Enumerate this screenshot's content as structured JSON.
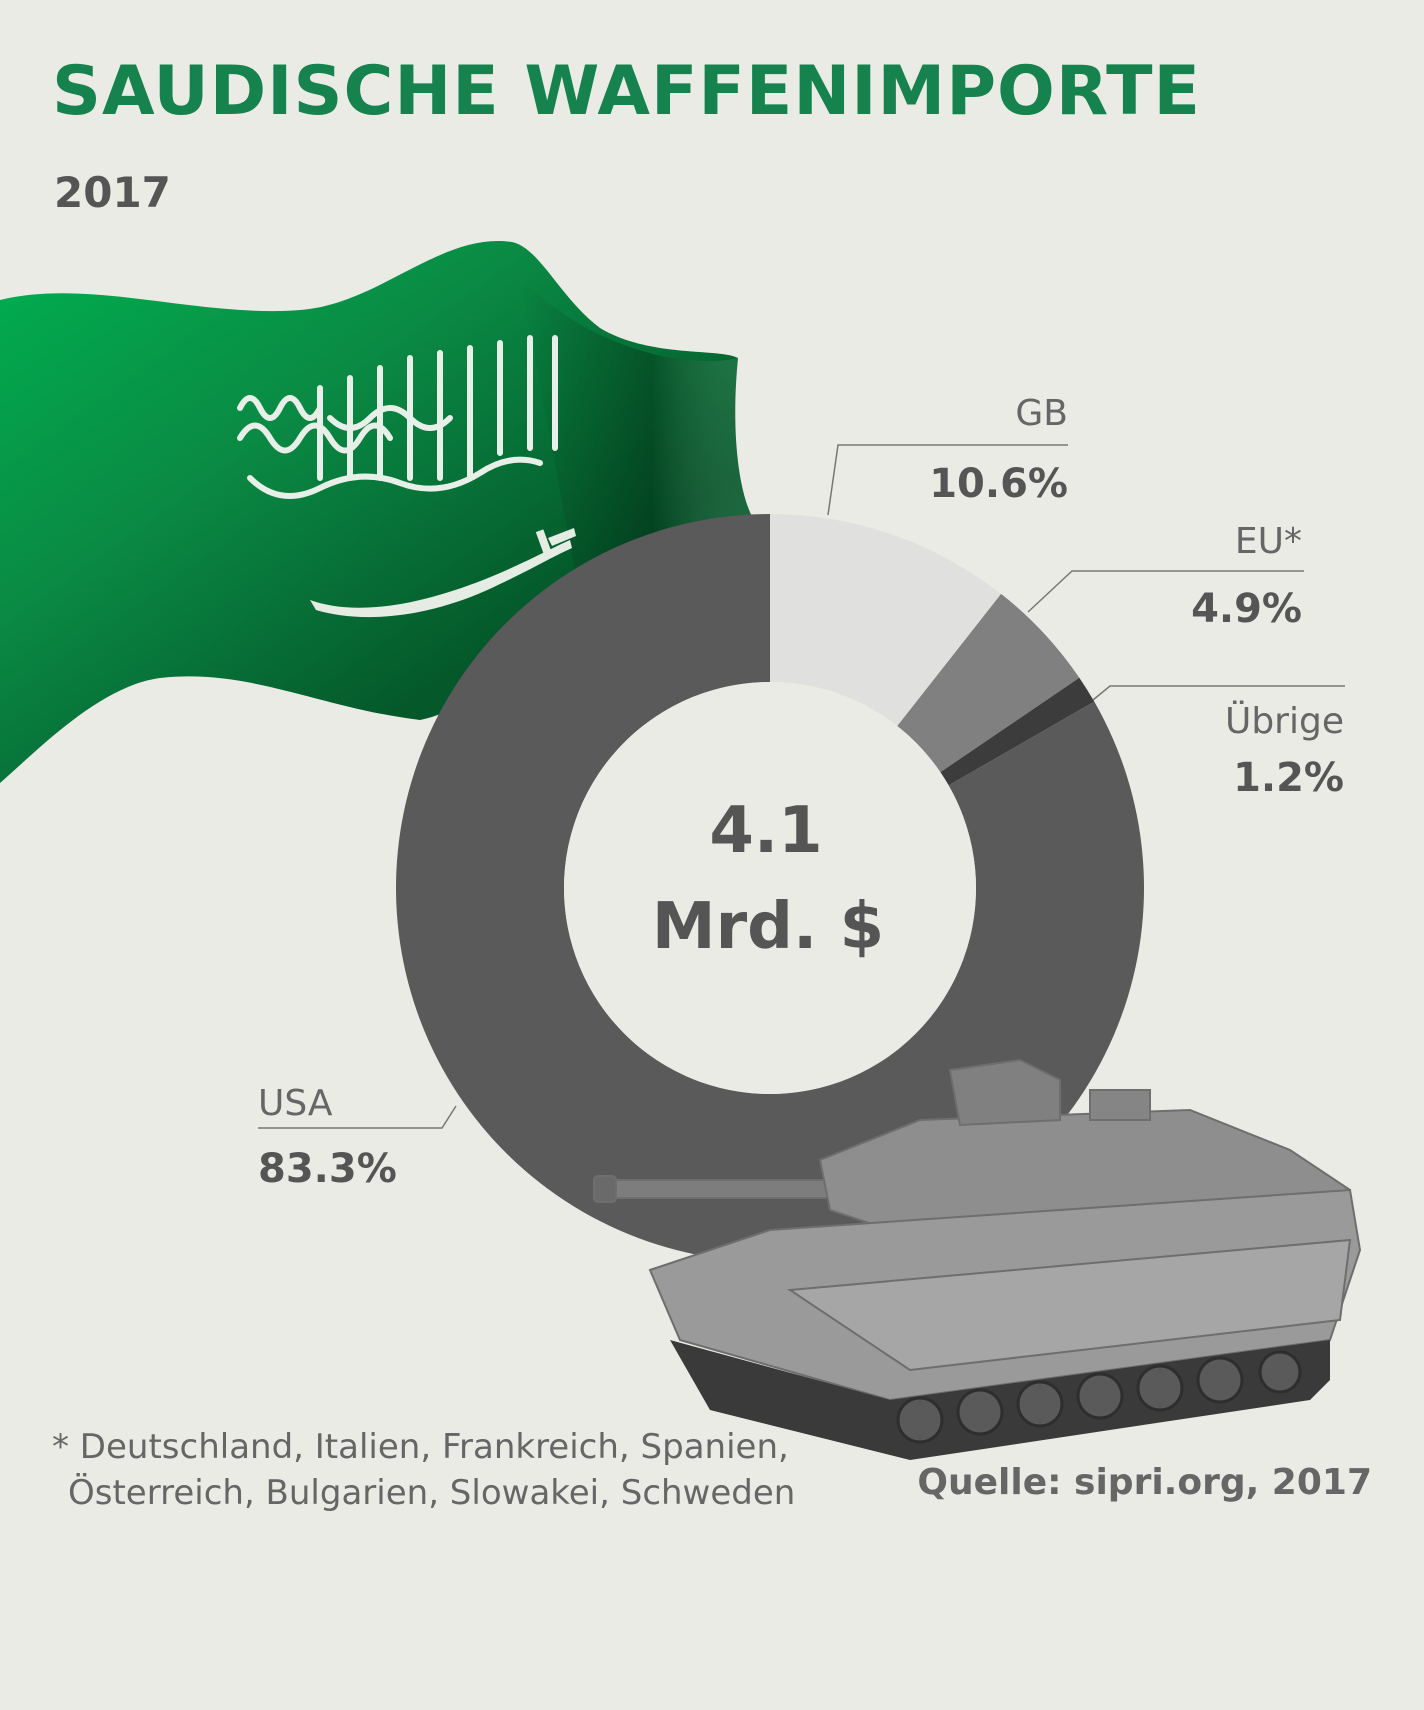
{
  "header": {
    "title": "SAUDISCHE WAFFENIMPORTE",
    "year": "2017"
  },
  "chart_data": {
    "type": "pie",
    "variant": "donut",
    "title": "SAUDISCHE WAFFENIMPORTE",
    "subtitle": "2017",
    "center_label_line1": "4.1",
    "center_label_line2": "Mrd. $",
    "unit": "%",
    "slices": [
      {
        "name": "GB",
        "value": 10.6,
        "label": "10.6%",
        "color": "#e0e0de"
      },
      {
        "name": "EU*",
        "value": 4.9,
        "label": "4.9%",
        "color": "#808080"
      },
      {
        "name": "Übrige",
        "value": 1.2,
        "label": "1.2%",
        "color": "#3c3c3c"
      },
      {
        "name": "USA",
        "value": 83.3,
        "label": "83.3%",
        "color": "#5a5a5a"
      }
    ]
  },
  "footnote": {
    "line1": "* Deutschland, Italien, Frankreich, Spanien,",
    "line2": "Österreich, Bulgarien, Slowakei, Schweden"
  },
  "source": "Quelle: sipri.org, 2017",
  "images": {
    "flag": "saudi-flag",
    "tank": "battle-tank"
  },
  "colors": {
    "title": "#16824d",
    "background": "#ebebe6",
    "flag_green": "#0b7a3e"
  }
}
